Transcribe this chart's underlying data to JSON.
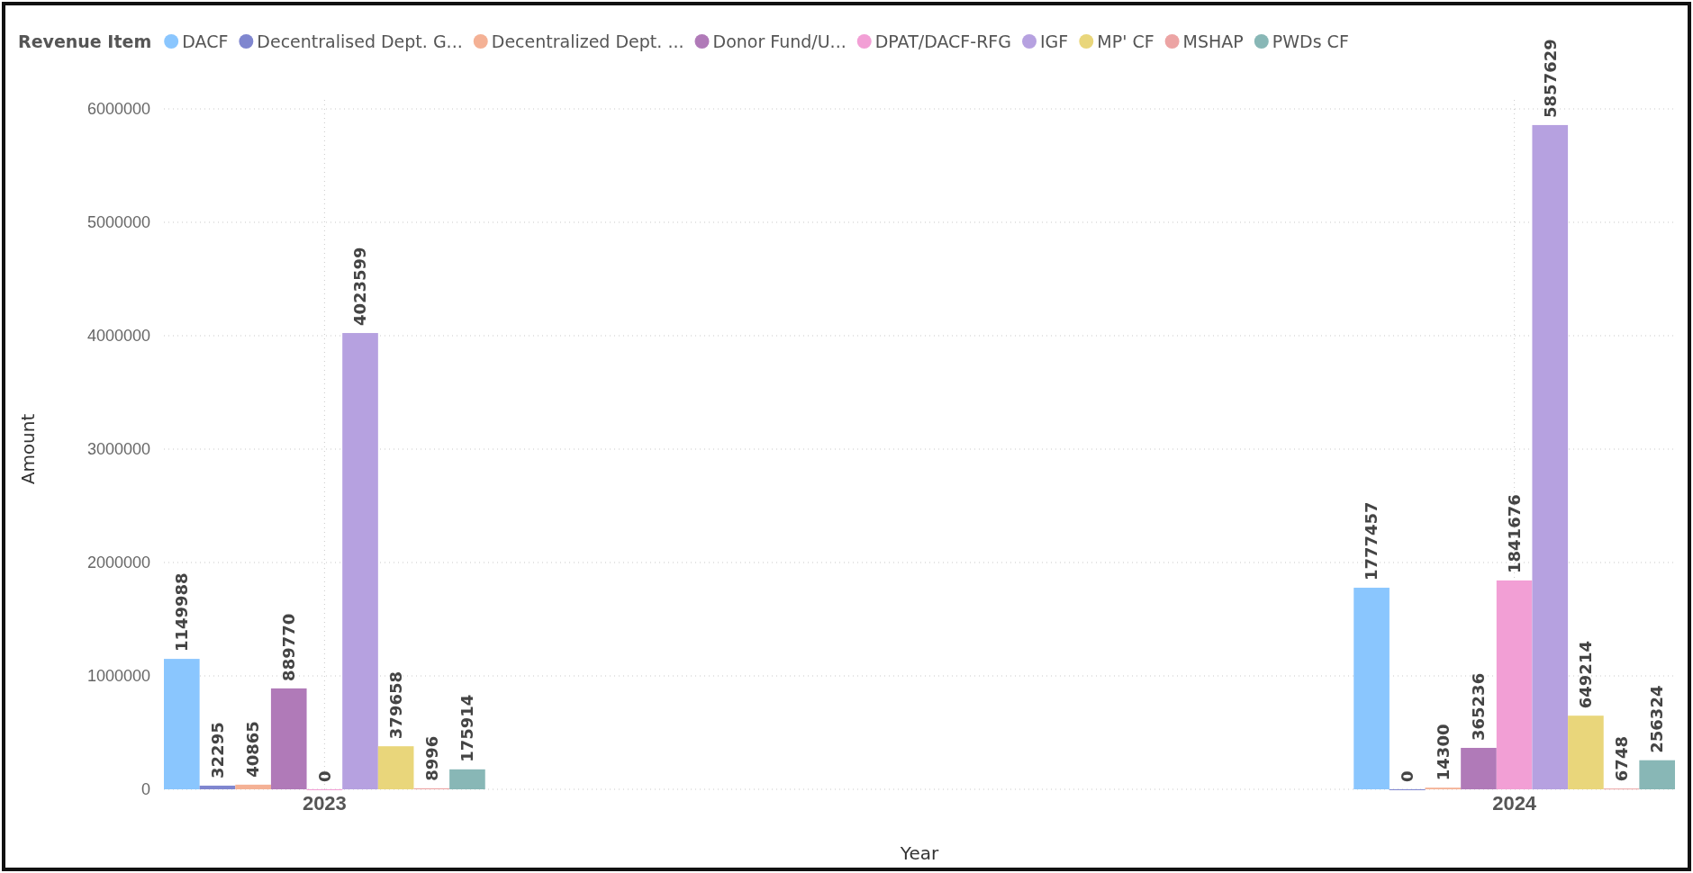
{
  "chart_data": {
    "type": "bar",
    "xlabel": "Year",
    "ylabel": "Amount",
    "legend_title": "Revenue Item",
    "legend": "top left",
    "grid": true,
    "data_labels": true,
    "categories": [
      "2023",
      "2024"
    ],
    "ylim": [
      0,
      6000000
    ],
    "yticks": [
      0,
      1000000,
      2000000,
      3000000,
      4000000,
      5000000,
      6000000
    ],
    "series": [
      {
        "name": "DACF",
        "color": "#8ac6fe",
        "values": [
          1149988,
          1777457
        ]
      },
      {
        "name": "Decentralised Dept. G...",
        "color": "#7f86cf",
        "values": [
          32295,
          0
        ]
      },
      {
        "name": "Decentralized Dept. ...",
        "color": "#f4b195",
        "values": [
          40865,
          14300
        ]
      },
      {
        "name": "Donor Fund/U...",
        "color": "#b07ab8",
        "values": [
          889770,
          365236
        ]
      },
      {
        "name": "DPAT/DACF-RFG",
        "color": "#f29fd5",
        "values": [
          0,
          1841676
        ]
      },
      {
        "name": "IGF",
        "color": "#b6a1e0",
        "values": [
          4023599,
          5857629
        ]
      },
      {
        "name": "MP' CF",
        "color": "#e9d67b",
        "values": [
          379658,
          649214
        ]
      },
      {
        "name": "MSHAP",
        "color": "#eca4a4",
        "values": [
          8996,
          6748
        ]
      },
      {
        "name": "PWDs CF",
        "color": "#88b7b6",
        "values": [
          175914,
          256324
        ]
      }
    ]
  }
}
